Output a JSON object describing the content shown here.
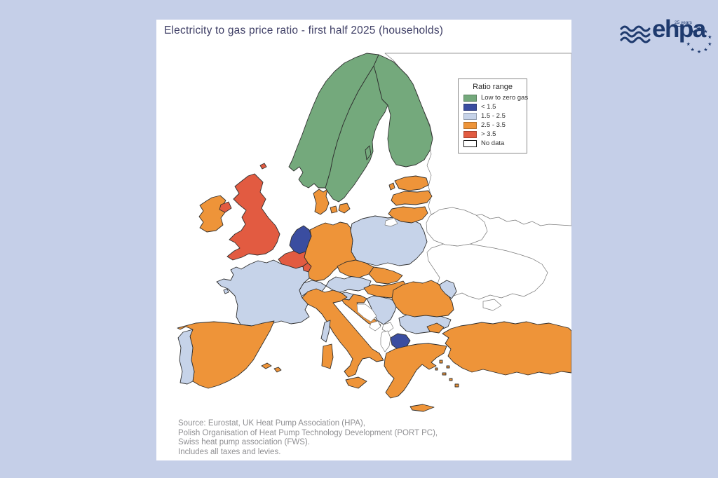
{
  "page": {
    "background": "#c5cfe8",
    "card_background": "#ffffff"
  },
  "title": "Electricity to gas price ratio - first half 2025 (households)",
  "legend": {
    "title": "Ratio range",
    "items": [
      {
        "label": "Low to zero gas",
        "key": "low_to_zero_gas"
      },
      {
        "label": "< 1.5",
        "key": "lt_1_5"
      },
      {
        "label": "1.5 - 2.5",
        "key": "r_1_5_to_2_5"
      },
      {
        "label": "2.5 - 3.5",
        "key": "r_2_5_to_3_5"
      },
      {
        "label": "> 3.5",
        "key": "gt_3_5"
      },
      {
        "label": "No data",
        "key": "no_data"
      }
    ]
  },
  "colors": {
    "low_to_zero_gas": "#74a97c",
    "lt_1_5": "#3a4da0",
    "r_1_5_to_2_5": "#c6d3e9",
    "r_2_5_to_3_5": "#ee9439",
    "gt_3_5": "#e25b41",
    "no_data": "#ffffff"
  },
  "chart_data": {
    "type": "choropleth-map",
    "title": "Electricity to gas price ratio - first half 2025 (households)",
    "legend_title": "Ratio range",
    "categories": [
      "Low to zero gas",
      "< 1.5",
      "1.5 - 2.5",
      "2.5 - 3.5",
      "> 3.5",
      "No data"
    ],
    "countries": [
      {
        "name": "Norway",
        "category": "low_to_zero_gas"
      },
      {
        "name": "Sweden",
        "category": "low_to_zero_gas"
      },
      {
        "name": "Finland",
        "category": "low_to_zero_gas"
      },
      {
        "name": "United Kingdom",
        "category": "gt_3_5"
      },
      {
        "name": "Belgium",
        "category": "gt_3_5"
      },
      {
        "name": "Luxembourg",
        "category": "gt_3_5"
      },
      {
        "name": "Netherlands",
        "category": "lt_1_5"
      },
      {
        "name": "North Macedonia",
        "category": "lt_1_5"
      },
      {
        "name": "Ireland",
        "category": "r_2_5_to_3_5"
      },
      {
        "name": "Germany",
        "category": "r_2_5_to_3_5"
      },
      {
        "name": "Denmark",
        "category": "r_2_5_to_3_5"
      },
      {
        "name": "Czechia",
        "category": "r_2_5_to_3_5"
      },
      {
        "name": "Slovakia",
        "category": "r_2_5_to_3_5"
      },
      {
        "name": "Hungary",
        "category": "r_2_5_to_3_5"
      },
      {
        "name": "Romania",
        "category": "r_2_5_to_3_5"
      },
      {
        "name": "Croatia",
        "category": "r_2_5_to_3_5"
      },
      {
        "name": "Spain",
        "category": "r_2_5_to_3_5"
      },
      {
        "name": "Italy",
        "category": "r_2_5_to_3_5"
      },
      {
        "name": "Greece",
        "category": "r_2_5_to_3_5"
      },
      {
        "name": "Turkey",
        "category": "r_2_5_to_3_5"
      },
      {
        "name": "Estonia",
        "category": "r_2_5_to_3_5"
      },
      {
        "name": "Latvia",
        "category": "r_2_5_to_3_5"
      },
      {
        "name": "Lithuania",
        "category": "r_2_5_to_3_5"
      },
      {
        "name": "France",
        "category": "r_1_5_to_2_5"
      },
      {
        "name": "Portugal",
        "category": "r_1_5_to_2_5"
      },
      {
        "name": "Switzerland",
        "category": "r_1_5_to_2_5"
      },
      {
        "name": "Austria",
        "category": "r_1_5_to_2_5"
      },
      {
        "name": "Poland",
        "category": "r_1_5_to_2_5"
      },
      {
        "name": "Slovenia",
        "category": "r_1_5_to_2_5"
      },
      {
        "name": "Serbia",
        "category": "r_1_5_to_2_5"
      },
      {
        "name": "Bulgaria",
        "category": "r_1_5_to_2_5"
      },
      {
        "name": "Moldova",
        "category": "r_1_5_to_2_5"
      },
      {
        "name": "Bosnia and Herzegovina",
        "category": "no_data"
      },
      {
        "name": "Montenegro",
        "category": "no_data"
      },
      {
        "name": "Kosovo",
        "category": "no_data"
      },
      {
        "name": "Albania",
        "category": "no_data"
      },
      {
        "name": "Ukraine",
        "category": "no_data"
      },
      {
        "name": "Belarus",
        "category": "no_data"
      },
      {
        "name": "Russia",
        "category": "no_data"
      },
      {
        "name": "Kaliningrad",
        "category": "no_data"
      }
    ]
  },
  "map_regions": {
    "russia": "no_data",
    "ukraine": "no_data",
    "crimea": "no_data",
    "belarus": "no_data",
    "kaliningrad": "no_data",
    "finland": "low_to_zero_gas",
    "sweden": "low_to_zero_gas",
    "gotland": "low_to_zero_gas",
    "norway": "low_to_zero_gas",
    "denmark": "r_2_5_to_3_5",
    "funen": "r_2_5_to_3_5",
    "zealand": "r_2_5_to_3_5",
    "estonia": "r_2_5_to_3_5",
    "estonia_islands": "r_2_5_to_3_5",
    "latvia": "r_2_5_to_3_5",
    "lithuania": "r_2_5_to_3_5",
    "poland": "r_1_5_to_2_5",
    "germany": "r_2_5_to_3_5",
    "netherlands": "lt_1_5",
    "belgium": "gt_3_5",
    "luxembourg": "gt_3_5",
    "france": "r_1_5_to_2_5",
    "brittany_islands": "r_1_5_to_2_5",
    "uk": "gt_3_5",
    "uk_islands": "gt_3_5",
    "northern_ireland": "gt_3_5",
    "ireland": "r_2_5_to_3_5",
    "spain": "r_2_5_to_3_5",
    "balearics": "r_2_5_to_3_5",
    "portugal": "r_1_5_to_2_5",
    "switzerland": "r_1_5_to_2_5",
    "austria": "r_1_5_to_2_5",
    "czechia": "r_2_5_to_3_5",
    "slovakia": "r_2_5_to_3_5",
    "hungary": "r_2_5_to_3_5",
    "slovenia": "r_1_5_to_2_5",
    "croatia": "r_2_5_to_3_5",
    "bosnia": "no_data",
    "serbia": "r_1_5_to_2_5",
    "montenegro": "no_data",
    "kosovo": "no_data",
    "albania": "no_data",
    "north_macedonia": "lt_1_5",
    "bulgaria": "r_1_5_to_2_5",
    "romania": "r_2_5_to_3_5",
    "moldova": "r_1_5_to_2_5",
    "italy": "r_2_5_to_3_5",
    "sicily": "r_2_5_to_3_5",
    "sardinia": "r_2_5_to_3_5",
    "corsica": "r_1_5_to_2_5",
    "greece": "r_2_5_to_3_5",
    "crete": "r_2_5_to_3_5",
    "aegean_islands": "r_2_5_to_3_5",
    "turkey": "r_2_5_to_3_5",
    "turkey_european": "r_2_5_to_3_5"
  },
  "source_lines": [
    "Source: Eurostat, UK Heat Pump Association (HPA),",
    "Polish Organisation of Heat Pump Technology Development (PORT PC),",
    "Swiss heat pump association (FWS).",
    "Includes all taxes and levies."
  ],
  "logo": {
    "text": "ehpa",
    "years": "25 years",
    "color": "#1e3a6e"
  }
}
